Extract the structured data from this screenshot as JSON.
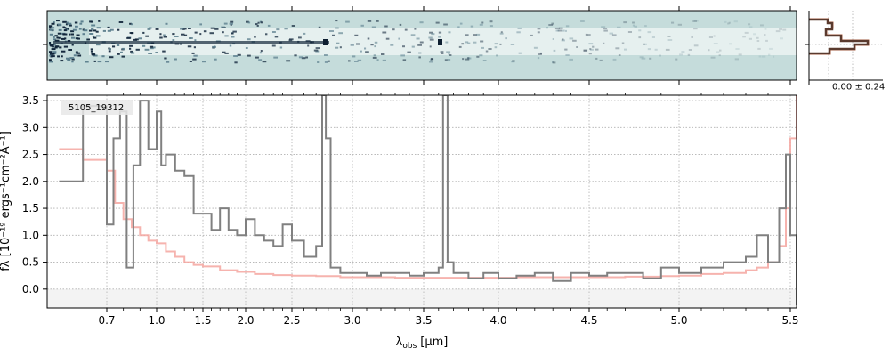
{
  "chart_data": [
    {
      "type": "heatmap",
      "panel": "2d-spectrum",
      "background_color": "#c5dcdb"
    },
    {
      "type": "line",
      "panel": "spatial-profile",
      "annotation": "0.00 ± 0.24",
      "profile_color": "#5a3a2e",
      "outline_color": "#e07b50"
    },
    {
      "type": "line",
      "panel": "1d-spectrum",
      "object_id": "5105_19312",
      "xlabel": "λobs [μm]",
      "xlabel_main": "λ",
      "xlabel_sub": "obs",
      "xlabel_unit": "[μm]",
      "ylabel": "fλ [10⁻¹⁹ ergs⁻¹cm⁻²Å⁻¹]",
      "ylabel_display": "fλ [10⁻¹⁹ ergs⁻¹cm⁻²Å⁻¹]",
      "xlim": [
        0.6,
        5.52
      ],
      "ylim": [
        -0.35,
        3.6
      ],
      "x_scale": "custom-nonlinear",
      "grid": true,
      "x_ticks": [
        "0.7",
        "1.0",
        "1.5",
        "2.0",
        "2.5",
        "3.0",
        "3.5",
        "4.0",
        "4.5",
        "5.0",
        "5.5"
      ],
      "y_ticks": [
        "0.0",
        "0.5",
        "1.0",
        "1.5",
        "2.0",
        "2.5",
        "3.0",
        "3.5"
      ],
      "series": [
        {
          "color": "#808080",
          "x": [
            0.62,
            0.66,
            0.7,
            0.74,
            0.78,
            0.82,
            0.86,
            0.9,
            0.95,
            1.0,
            1.05,
            1.1,
            1.2,
            1.3,
            1.4,
            1.5,
            1.6,
            1.7,
            1.8,
            1.9,
            2.0,
            2.1,
            2.2,
            2.3,
            2.4,
            2.5,
            2.6,
            2.7,
            2.75,
            2.78,
            2.82,
            2.9,
            3.0,
            3.1,
            3.2,
            3.3,
            3.4,
            3.5,
            3.6,
            3.63,
            3.66,
            3.7,
            3.8,
            3.9,
            4.0,
            4.1,
            4.2,
            4.3,
            4.4,
            4.5,
            4.6,
            4.7,
            4.8,
            4.9,
            5.0,
            5.1,
            5.2,
            5.3,
            5.35,
            5.4,
            5.45,
            5.48,
            5.5,
            5.52
          ],
          "values": [
            2.0,
            3.4,
            1.2,
            2.8,
            3.3,
            0.4,
            2.3,
            3.5,
            2.6,
            3.3,
            2.3,
            2.5,
            2.2,
            2.1,
            1.4,
            1.4,
            1.1,
            1.5,
            1.1,
            1.0,
            1.3,
            1.0,
            0.9,
            0.8,
            1.2,
            0.9,
            0.6,
            0.8,
            3.6,
            2.8,
            0.4,
            0.3,
            0.3,
            0.25,
            0.3,
            0.3,
            0.25,
            0.3,
            0.4,
            3.6,
            0.5,
            0.3,
            0.2,
            0.3,
            0.2,
            0.25,
            0.3,
            0.15,
            0.3,
            0.25,
            0.3,
            0.3,
            0.2,
            0.4,
            0.3,
            0.4,
            0.5,
            0.6,
            1.0,
            0.5,
            1.5,
            2.5,
            1.0,
            -0.3
          ]
        },
        {
          "color": "#f4a6a0",
          "x": [
            0.62,
            0.66,
            0.7,
            0.75,
            0.8,
            0.85,
            0.9,
            0.95,
            1.0,
            1.1,
            1.2,
            1.3,
            1.4,
            1.5,
            1.7,
            1.9,
            2.1,
            2.3,
            2.5,
            2.7,
            2.9,
            3.1,
            3.3,
            3.5,
            3.7,
            3.9,
            4.1,
            4.3,
            4.5,
            4.7,
            4.9,
            5.0,
            5.1,
            5.2,
            5.3,
            5.35,
            5.4,
            5.45,
            5.48,
            5.5,
            5.52
          ],
          "values": [
            2.6,
            2.4,
            2.2,
            1.6,
            1.3,
            1.15,
            1.0,
            0.9,
            0.85,
            0.7,
            0.6,
            0.5,
            0.45,
            0.42,
            0.35,
            0.32,
            0.28,
            0.26,
            0.25,
            0.24,
            0.22,
            0.22,
            0.21,
            0.21,
            0.21,
            0.21,
            0.22,
            0.22,
            0.22,
            0.23,
            0.24,
            0.25,
            0.28,
            0.3,
            0.35,
            0.4,
            0.5,
            0.8,
            1.5,
            2.8,
            3.6
          ]
        }
      ]
    }
  ]
}
